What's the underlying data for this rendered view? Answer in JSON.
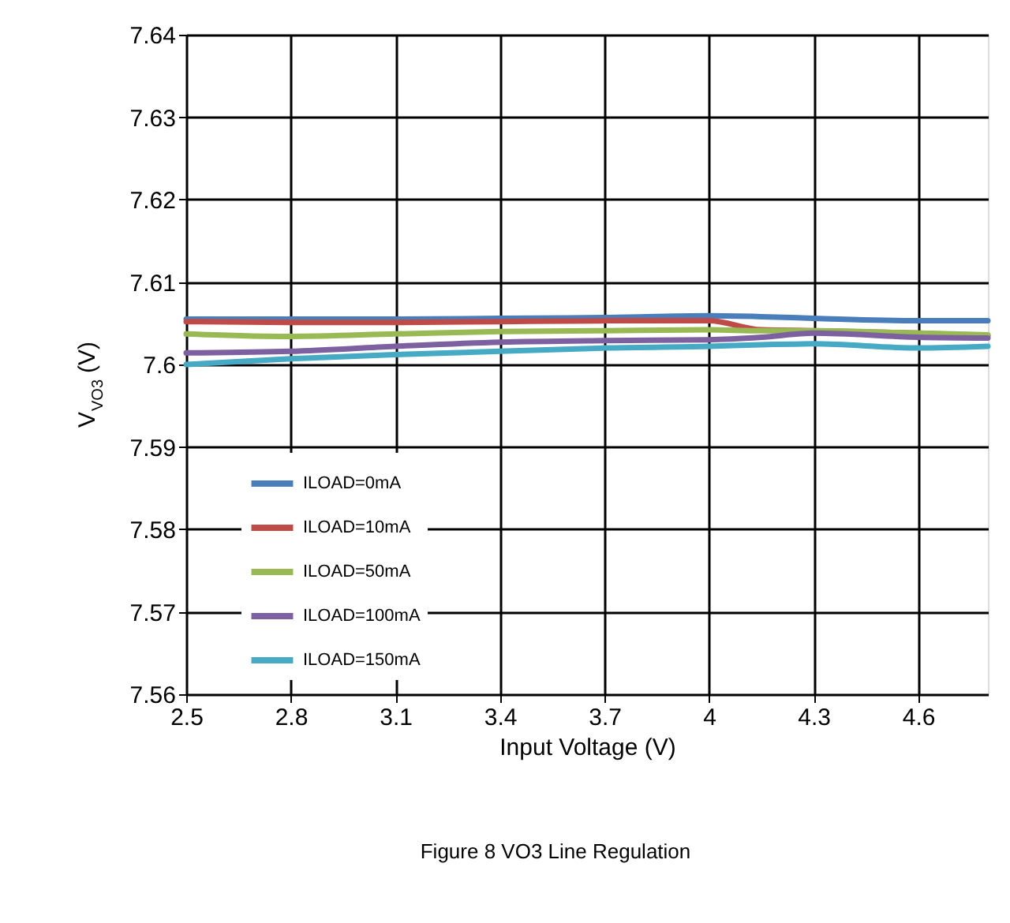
{
  "chart_data": {
    "type": "line",
    "xlabel": "Input Voltage (V)",
    "ylabel": "V$_{VO3}$ (V)",
    "annotations": [
      "Figure 8 VO3 Line Regulation"
    ],
    "x": [
      2.5,
      2.8,
      3.1,
      3.4,
      3.7,
      4.0,
      4.15,
      4.3,
      4.6,
      4.8
    ],
    "series": [
      {
        "name": "ILOAD=0mA",
        "color": "#4a7ebb",
        "values": [
          7.6055,
          7.6055,
          7.6055,
          7.6056,
          7.6057,
          7.6059,
          7.6058,
          7.6056,
          7.6053,
          7.6053
        ]
      },
      {
        "name": "ILOAD=10mA",
        "color": "#be4b48",
        "values": [
          7.6052,
          7.6051,
          7.6051,
          7.6052,
          7.6053,
          7.6053,
          7.6042,
          7.6041,
          7.6038,
          7.6035
        ]
      },
      {
        "name": "ILOAD=50mA",
        "color": "#98b954",
        "values": [
          7.6037,
          7.6034,
          7.6037,
          7.604,
          7.6041,
          7.6042,
          7.6041,
          7.6041,
          7.6038,
          7.6036
        ]
      },
      {
        "name": "ILOAD=100mA",
        "color": "#7d60a0",
        "values": [
          7.6014,
          7.6016,
          7.6022,
          7.6027,
          7.6029,
          7.603,
          7.6033,
          7.6038,
          7.6033,
          7.6032
        ]
      },
      {
        "name": "ILOAD=150mA",
        "color": "#46aac5",
        "values": [
          7.6,
          7.6007,
          7.6012,
          7.6016,
          7.602,
          7.6022,
          7.6024,
          7.6025,
          7.602,
          7.6022
        ]
      }
    ],
    "xlim": [
      2.5,
      4.8
    ],
    "xticks": [
      2.5,
      2.8,
      3.1,
      3.4,
      3.7,
      4,
      4.3,
      4.6
    ],
    "ylim": [
      7.56,
      7.64
    ],
    "yticks": [
      7.56,
      7.57,
      7.58,
      7.59,
      7.6,
      7.61,
      7.62,
      7.63,
      7.64
    ],
    "grid": true,
    "legend": "left",
    "marker": "none",
    "line_style": "solid"
  }
}
